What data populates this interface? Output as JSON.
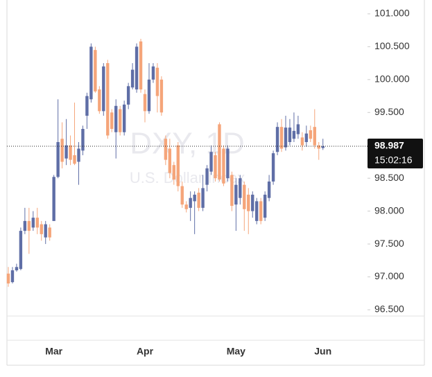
{
  "chart_data": {
    "type": "candlestick",
    "watermark_title": "DXY, 1D",
    "watermark_subtitle": "U.S. Dollar Index",
    "countdown": "15:02:16",
    "up_color": "#5f6ea6",
    "down_color": "#f5a57a",
    "ylim": [
      96.405,
      101.21
    ],
    "yticks": [
      {
        "value": 96.5,
        "label": "96.500"
      },
      {
        "value": 97,
        "label": "97.000"
      },
      {
        "value": 97.5,
        "label": "97.500"
      },
      {
        "value": 98,
        "label": "98.000"
      },
      {
        "value": 98.5,
        "label": "98.500"
      },
      {
        "value": 99,
        "label": "99.000"
      },
      {
        "value": 99.5,
        "label": "99.500"
      },
      {
        "value": 100,
        "label": "100.000"
      },
      {
        "value": 100.5,
        "label": "100.500"
      },
      {
        "value": 101,
        "label": "101.000"
      }
    ],
    "categories": [
      null,
      null,
      null,
      null,
      null,
      null,
      null,
      null,
      null,
      null,
      null,
      "Mar",
      null,
      null,
      null,
      null,
      null,
      null,
      null,
      null,
      null,
      null,
      null,
      null,
      null,
      null,
      null,
      null,
      null,
      null,
      null,
      null,
      null,
      "Apr",
      null,
      null,
      null,
      null,
      null,
      null,
      null,
      null,
      null,
      null,
      null,
      null,
      null,
      null,
      null,
      null,
      null,
      null,
      null,
      null,
      null,
      "May",
      null,
      null,
      null,
      null,
      null,
      null,
      null,
      null,
      null,
      null,
      null,
      null,
      null,
      null,
      null,
      null,
      null,
      null,
      null,
      null,
      "Jun"
    ],
    "open": [
      97.05,
      96.92,
      97.1,
      97.12,
      97.7,
      97.85,
      97.75,
      97.9,
      97.8,
      97.6,
      97.75,
      97.85,
      98.52,
      99.1,
      98.8,
      99.0,
      98.85,
      98.75,
      98.92,
      99.45,
      99.7,
      100.45,
      99.85,
      99.52,
      100.25,
      99.5,
      99.2,
      99.55,
      99.2,
      99.62,
      99.88,
      99.85,
      100.58,
      99.78,
      99.52,
      100.0,
      100.18,
      100.0,
      99.1,
      98.95,
      98.7,
      99.0,
      98.38,
      98.1,
      98.05,
      98.15,
      98.28,
      98.05,
      98.4,
      98.6,
      98.85,
      99.32,
      98.95,
      98.5,
      98.55,
      98.1,
      98.2,
      98.4,
      98.25,
      98.0,
      97.85,
      98.15,
      97.9,
      98.2,
      98.45,
      98.9,
      99.28,
      98.97,
      99.05,
      99.1,
      99.17,
      99.12,
      99.05,
      99.23,
      99.28,
      99.0,
      98.96
    ],
    "high": [
      97.15,
      97.15,
      97.2,
      97.75,
      98.05,
      98.05,
      98.0,
      98.05,
      97.85,
      97.85,
      97.8,
      98.55,
      99.7,
      99.35,
      99.4,
      99.15,
      99.65,
      99.05,
      99.3,
      99.8,
      100.55,
      100.5,
      99.9,
      100.25,
      100.3,
      99.55,
      99.7,
      99.6,
      99.68,
      99.95,
      100.25,
      100.55,
      100.62,
      99.85,
      100.25,
      100.25,
      100.25,
      100.05,
      99.15,
      99.1,
      98.75,
      99.05,
      98.45,
      98.15,
      98.3,
      98.3,
      98.35,
      98.55,
      98.7,
      99.0,
      98.9,
      99.35,
      99.0,
      99.0,
      98.6,
      98.5,
      98.55,
      98.45,
      98.35,
      98.3,
      98.2,
      98.2,
      98.3,
      98.55,
      98.92,
      99.35,
      99.4,
      99.45,
      99.4,
      99.5,
      99.45,
      99.2,
      99.3,
      99.3,
      99.55,
      99.05,
      99.1
    ],
    "low": [
      96.85,
      96.9,
      97.08,
      97.1,
      97.65,
      97.35,
      97.7,
      97.65,
      97.55,
      97.5,
      97.55,
      97.85,
      98.5,
      98.65,
      98.7,
      98.7,
      98.7,
      98.4,
      98.85,
      99.25,
      99.65,
      99.8,
      99.48,
      99.45,
      99.1,
      99.2,
      98.8,
      99.15,
      99.15,
      99.55,
      99.85,
      99.8,
      99.8,
      99.35,
      99.48,
      99.95,
      99.5,
      99.45,
      98.7,
      98.5,
      98.4,
      98.3,
      98.05,
      97.98,
      97.85,
      97.65,
      98.0,
      98.0,
      98.3,
      98.55,
      98.45,
      98.45,
      98.38,
      98.45,
      98.0,
      97.7,
      98.1,
      97.7,
      97.65,
      97.9,
      97.8,
      97.8,
      97.85,
      98.15,
      98.4,
      98.85,
      98.9,
      98.92,
      99.0,
      99.05,
      99.1,
      98.92,
      98.98,
      99.05,
      98.95,
      98.78,
      98.93
    ],
    "close": [
      96.9,
      97.1,
      97.15,
      97.7,
      97.85,
      97.7,
      97.9,
      97.75,
      97.65,
      97.8,
      97.6,
      98.52,
      99.05,
      98.75,
      99.0,
      98.78,
      98.72,
      98.95,
      99.25,
      99.75,
      100.5,
      99.82,
      99.52,
      100.2,
      99.15,
      99.25,
      99.6,
      99.2,
      99.62,
      99.9,
      100.15,
      100.5,
      99.85,
      99.52,
      100.0,
      100.2,
      99.75,
      99.5,
      98.78,
      98.58,
      98.48,
      98.38,
      98.1,
      98.03,
      98.2,
      98.25,
      98.05,
      98.35,
      98.65,
      98.9,
      98.5,
      98.48,
      98.42,
      98.95,
      98.08,
      98.4,
      98.5,
      98.03,
      98.0,
      98.25,
      98.15,
      97.85,
      98.25,
      98.45,
      98.88,
      99.28,
      98.95,
      99.27,
      99.27,
      99.22,
      99.32,
      99.0,
      99.18,
      99.1,
      99.0,
      98.95,
      98.987
    ]
  }
}
